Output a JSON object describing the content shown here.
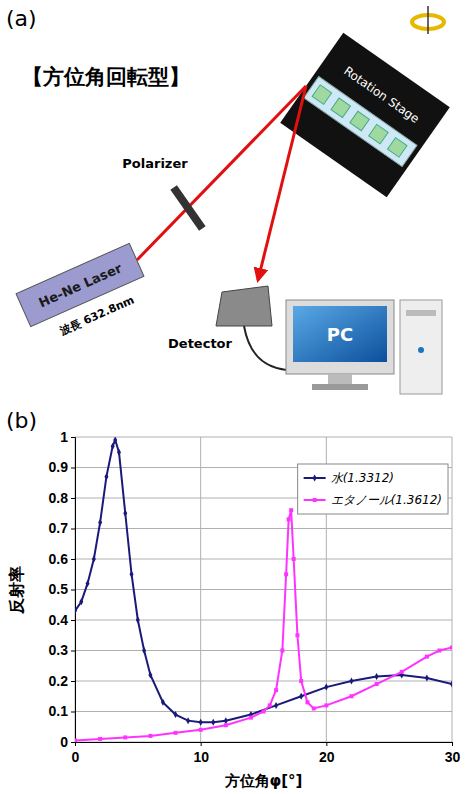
{
  "panel_labels": [
    "(a)",
    "(b)"
  ],
  "diagram": {
    "title": "【方位角回転型】",
    "laser": "He-Ne Laser",
    "wavelength": "波長 632.8nm",
    "polarizer": "Polarizer",
    "stage": "Rotation Stage",
    "detector": "Detector",
    "pc": "PC"
  },
  "chart_data": {
    "type": "line",
    "xlabel": "方位角φ[°]",
    "ylabel": "反射率",
    "xlim": [
      0,
      30
    ],
    "ylim": [
      0,
      1
    ],
    "xticks": [
      0,
      10,
      20,
      30
    ],
    "yticks": [
      0,
      0.1,
      0.2,
      0.3,
      0.4,
      0.5,
      0.6,
      0.7,
      0.8,
      0.9,
      1
    ],
    "grid": true,
    "legend": "top-right",
    "series": [
      {
        "name": "水(1.3312)",
        "color": "#1a1a7a",
        "marker": "diamond",
        "x": [
          0,
          0.5,
          1,
          1.5,
          2,
          2.5,
          3,
          3.2,
          3.5,
          4,
          4.5,
          5,
          5.5,
          6,
          7,
          8,
          9,
          10,
          11,
          12,
          14,
          16,
          18,
          20,
          22,
          24,
          26,
          28,
          30
        ],
        "values": [
          0.43,
          0.46,
          0.52,
          0.6,
          0.72,
          0.87,
          0.97,
          0.99,
          0.95,
          0.75,
          0.55,
          0.4,
          0.3,
          0.22,
          0.13,
          0.09,
          0.07,
          0.065,
          0.065,
          0.07,
          0.09,
          0.12,
          0.15,
          0.18,
          0.2,
          0.215,
          0.22,
          0.21,
          0.19
        ]
      },
      {
        "name": "エタノール(1.3612)",
        "color": "#ff33ff",
        "marker": "square",
        "x": [
          0,
          2,
          4,
          6,
          8,
          10,
          12,
          14,
          15,
          15.5,
          16,
          16.5,
          16.8,
          17,
          17.2,
          17.4,
          17.7,
          18,
          18.5,
          19,
          20,
          22,
          24,
          26,
          28,
          29,
          30
        ],
        "values": [
          0.005,
          0.01,
          0.015,
          0.02,
          0.03,
          0.04,
          0.055,
          0.08,
          0.1,
          0.12,
          0.17,
          0.3,
          0.55,
          0.73,
          0.76,
          0.6,
          0.35,
          0.2,
          0.13,
          0.11,
          0.12,
          0.15,
          0.19,
          0.23,
          0.28,
          0.3,
          0.31
        ]
      }
    ]
  }
}
